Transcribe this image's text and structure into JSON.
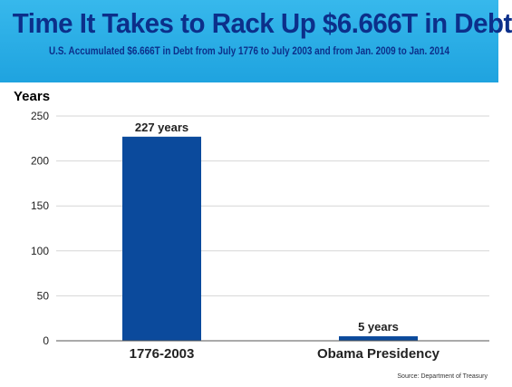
{
  "title": "Time It Takes to Rack Up $6.666T in Debt",
  "subtitle": "U.S. Accumulated $6.666T in Debt from July 1776 to July 2003 and from Jan. 2009 to Jan. 2014",
  "source": "Source: Department of Treasury",
  "colors": {
    "banner": "#22a7e2",
    "title": "#0c2f8a",
    "bar": "#0b4a9c",
    "grid": "#d6d6d6"
  },
  "chart_data": {
    "type": "bar",
    "ylabel": "Years",
    "xlabel": "",
    "categories": [
      "1776-2003",
      "Obama Presidency"
    ],
    "values": [
      227,
      5
    ],
    "data_labels": [
      "227 years",
      "5 years"
    ],
    "ylim": [
      0,
      250
    ],
    "yticks": [
      0,
      50,
      100,
      150,
      200,
      250
    ],
    "grid": true,
    "legend": "none"
  }
}
